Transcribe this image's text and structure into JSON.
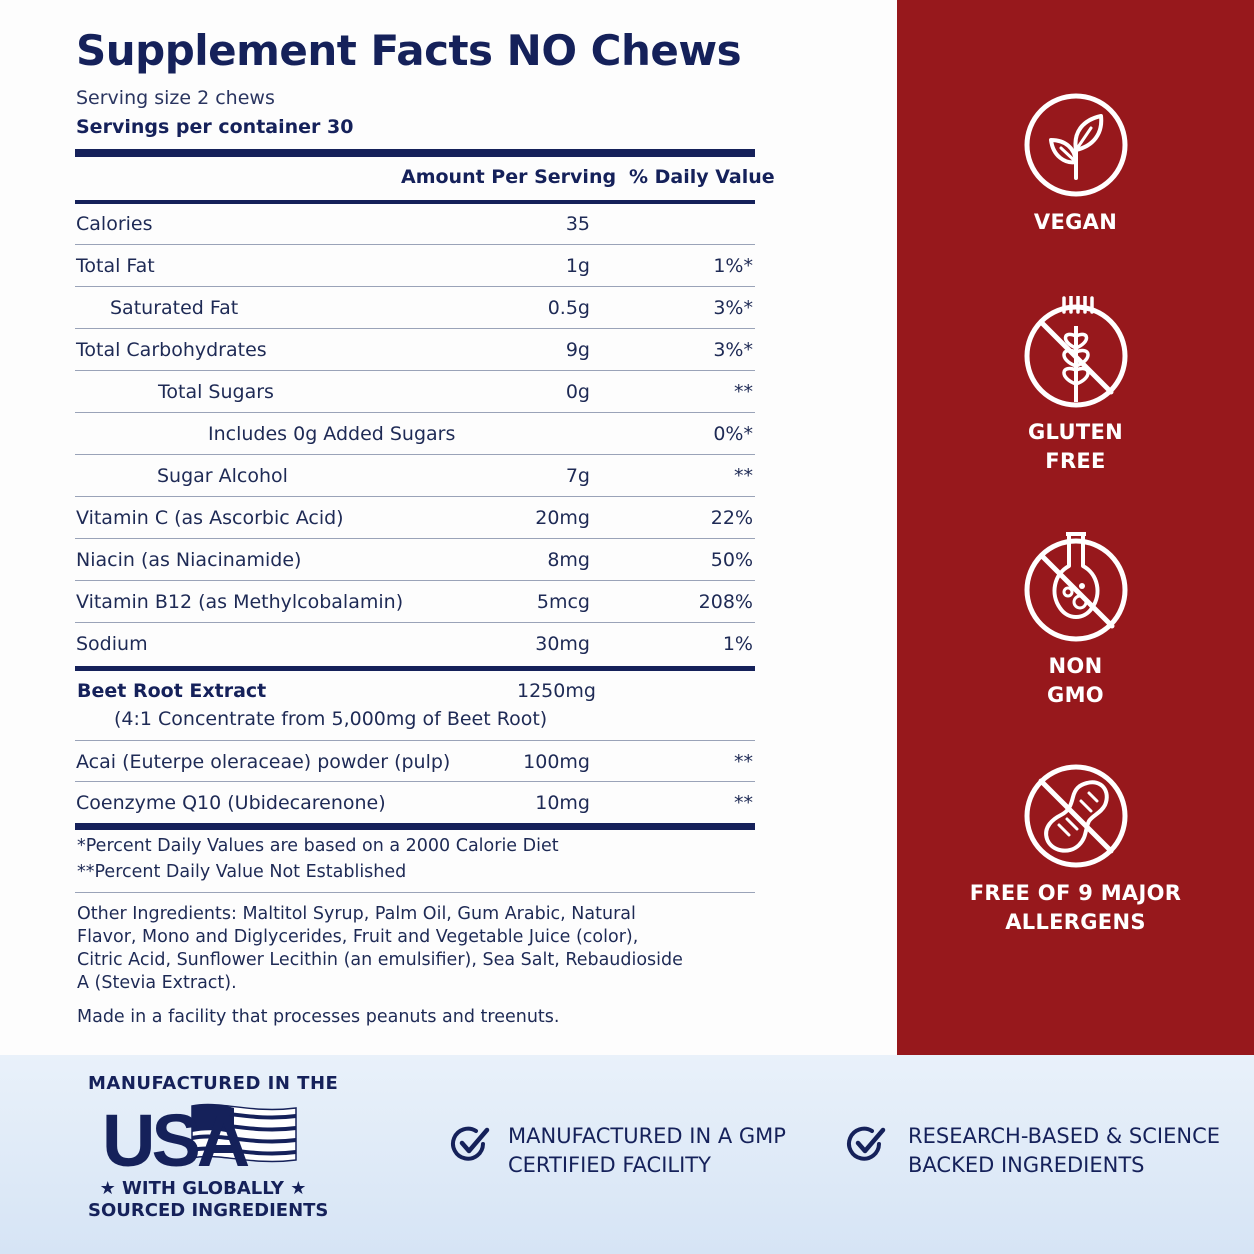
{
  "title": "Supplement Facts NO Chews",
  "serving_size": "Serving size 2 chews",
  "servings_per_container": "Servings per container 30",
  "headers": {
    "amount": "Amount Per Serving",
    "dv": "% Daily Value"
  },
  "rows": [
    {
      "name": "Calories",
      "amount": "35",
      "dv": ""
    },
    {
      "name": "Total Fat",
      "amount": "1g",
      "dv": "1%*"
    },
    {
      "name": "Saturated Fat",
      "amount": "0.5g",
      "dv": "3%*"
    },
    {
      "name": "Total Carbohydrates",
      "amount": "9g",
      "dv": "3%*"
    },
    {
      "name": "Total Sugars",
      "amount": "0g",
      "dv": "**"
    },
    {
      "name": "Includes 0g Added Sugars",
      "amount": "",
      "dv": "0%*"
    },
    {
      "name": "Sugar Alcohol",
      "amount": "7g",
      "dv": "**"
    },
    {
      "name": "Vitamin C (as Ascorbic Acid)",
      "amount": "20mg",
      "dv": "22%"
    },
    {
      "name": "Niacin (as Niacinamide)",
      "amount": "8mg",
      "dv": "50%"
    },
    {
      "name": "Vitamin B12 (as Methylcobalamin)",
      "amount": "5mcg",
      "dv": "208%"
    },
    {
      "name": "Sodium",
      "amount": "30mg",
      "dv": "1%"
    }
  ],
  "beet": {
    "name": "Beet Root Extract",
    "amount": "1250mg",
    "sub": "(4:1 Concentrate from 5,000mg of Beet Root)"
  },
  "rows2": [
    {
      "name": "Acai (Euterpe oleraceae) powder (pulp)",
      "amount": "100mg",
      "dv": "**"
    },
    {
      "name": "Coenzyme Q10 (Ubidecarenone)",
      "amount": "10mg",
      "dv": "**"
    }
  ],
  "notes": [
    "*Percent Daily Values are based on a 2000 Calorie Diet",
    "**Percent Daily Value Not Established"
  ],
  "other_ingredients": "Other Ingredients: Maltitol Syrup, Palm Oil, Gum Arabic, Natural Flavor, Mono and Diglycerides, Fruit and Vegetable Juice (color), Citric Acid, Sunflower Lecithin (an emulsifier), Sea Salt, Rebaudioside A (Stevia Extract).",
  "facility": "Made in a facility that processes peanuts and treenuts.",
  "badges": [
    {
      "icon": "vegan-plant-icon",
      "line1": "VEGAN",
      "line2": ""
    },
    {
      "icon": "gluten-free-wheat-icon",
      "line1": "GLUTEN",
      "line2": "FREE"
    },
    {
      "icon": "non-gmo-flask-icon",
      "line1": "NON",
      "line2": "GMO"
    },
    {
      "icon": "allergen-free-peanut-icon",
      "line1": "FREE OF 9 MAJOR",
      "line2": "ALLERGENS"
    }
  ],
  "footer": {
    "manufactured_in": "MANUFACTURED IN THE",
    "usa": "USA",
    "globally_1": "★  WITH GLOBALLY  ★",
    "globally_2": "SOURCED INGREDIENTS",
    "gmp_1": "MANUFACTURED IN A GMP",
    "gmp_2": "CERTIFIED FACILITY",
    "research_1": "RESEARCH-BASED & SCIENCE",
    "research_2": "BACKED INGREDIENTS"
  },
  "colors": {
    "navy": "#15215a",
    "red": "#97181c",
    "footer_bg": "#dfe9f6"
  }
}
